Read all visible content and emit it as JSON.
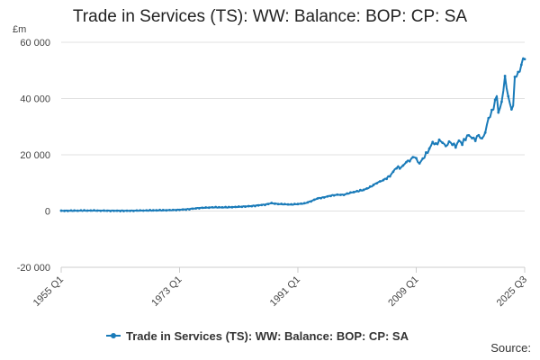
{
  "chart_data": {
    "type": "line",
    "title": "Trade in Services (TS): WW: Balance: BOP: CP: SA",
    "ylabel": "£m",
    "xlabel": "",
    "ylim": [
      -20000,
      60000
    ],
    "y_ticks": [
      -20000,
      0,
      20000,
      40000,
      60000
    ],
    "y_tick_labels": [
      "-20 000",
      "0",
      "20 000",
      "40 000",
      "60 000"
    ],
    "x_range": [
      1955.0,
      2025.5
    ],
    "x_ticks": [
      1955.0,
      1973.0,
      1991.0,
      2009.0,
      2025.5
    ],
    "x_tick_labels": [
      "1955 Q1",
      "1973 Q1",
      "1991 Q1",
      "2009 Q1",
      "2025 Q3"
    ],
    "grid": "horizontal",
    "legend": "bottom-center",
    "series": [
      {
        "name": "Trade in Services (TS): WW: Balance: BOP: CP: SA",
        "color": "#1a7bb9",
        "x": [
          1955.0,
          1960.0,
          1965.0,
          1970.0,
          1972.0,
          1974.0,
          1976.0,
          1978.0,
          1980.0,
          1982.0,
          1984.0,
          1986.0,
          1987.0,
          1988.0,
          1989.0,
          1990.0,
          1991.0,
          1992.0,
          1993.0,
          1994.0,
          1995.0,
          1996.0,
          1997.0,
          1998.0,
          1999.0,
          2000.0,
          2001.0,
          2002.0,
          2003.0,
          2004.0,
          2005.0,
          2006.0,
          2006.75,
          2007.5,
          2008.0,
          2008.75,
          2009.25,
          2009.5,
          2010.0,
          2011.0,
          2011.5,
          2012.0,
          2012.5,
          2013.0,
          2013.5,
          2014.0,
          2014.5,
          2015.0,
          2015.5,
          2016.0,
          2016.5,
          2017.0,
          2017.5,
          2018.0,
          2018.5,
          2019.0,
          2019.5,
          2020.0,
          2020.5,
          2021.0,
          2021.25,
          2021.5,
          2021.75,
          2022.0,
          2022.25,
          2022.5,
          2022.75,
          2023.0,
          2023.25,
          2023.5,
          2023.75,
          2024.0,
          2024.25,
          2024.5,
          2024.75,
          2025.0,
          2025.25,
          2025.5
        ],
        "values": [
          100,
          150,
          100,
          250,
          350,
          600,
          1100,
          1300,
          1300,
          1500,
          1800,
          2300,
          2800,
          2500,
          2400,
          2300,
          2500,
          2700,
          3500,
          4500,
          4900,
          5500,
          5800,
          5800,
          6500,
          7000,
          7500,
          8500,
          10000,
          11000,
          12500,
          15500,
          15500,
          17500,
          18000,
          19500,
          17500,
          17000,
          18500,
          22000,
          24500,
          23500,
          25000,
          24500,
          23000,
          24500,
          24000,
          23000,
          25000,
          24000,
          26000,
          27000,
          26000,
          25500,
          27000,
          25500,
          28000,
          33000,
          35000,
          39000,
          41000,
          35000,
          37000,
          38000,
          44000,
          47000,
          44000,
          41000,
          38000,
          36000,
          38000,
          47000,
          48000,
          50000,
          48500,
          53000,
          54000,
          54000
        ]
      }
    ],
    "source_label": "Source:"
  }
}
